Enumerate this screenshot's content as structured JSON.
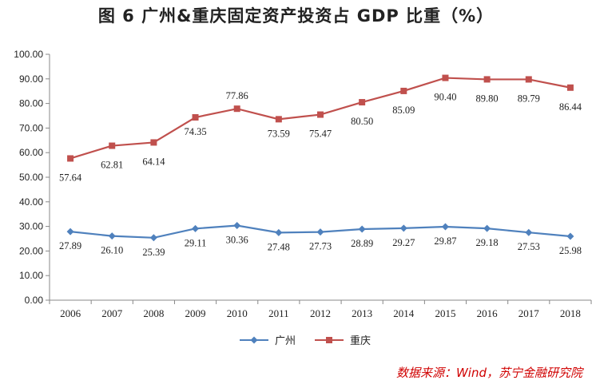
{
  "chart_data": {
    "type": "line",
    "title": "图 6   广州&重庆固定资产投资占 GDP 比重（%）",
    "categories": [
      "2006",
      "2007",
      "2008",
      "2009",
      "2010",
      "2011",
      "2012",
      "2013",
      "2014",
      "2015",
      "2016",
      "2017",
      "2018"
    ],
    "series": [
      {
        "name": "广州",
        "color": "#4f81bd",
        "marker": "diamond",
        "values": [
          27.89,
          26.1,
          25.39,
          29.11,
          30.36,
          27.48,
          27.73,
          28.89,
          29.27,
          29.87,
          29.18,
          27.53,
          25.98
        ]
      },
      {
        "name": "重庆",
        "color": "#c0504d",
        "marker": "square",
        "values": [
          57.64,
          62.81,
          64.14,
          74.35,
          77.86,
          73.59,
          75.47,
          80.5,
          85.09,
          90.4,
          89.8,
          89.79,
          86.44
        ]
      }
    ],
    "yticks": [
      "0.00",
      "10.00",
      "20.00",
      "30.00",
      "40.00",
      "50.00",
      "60.00",
      "70.00",
      "80.00",
      "90.00",
      "100.00"
    ],
    "ylim": [
      0,
      100
    ],
    "grid": false,
    "legend_position": "bottom",
    "source": "数据来源：Wind，苏宁金融研究院"
  }
}
